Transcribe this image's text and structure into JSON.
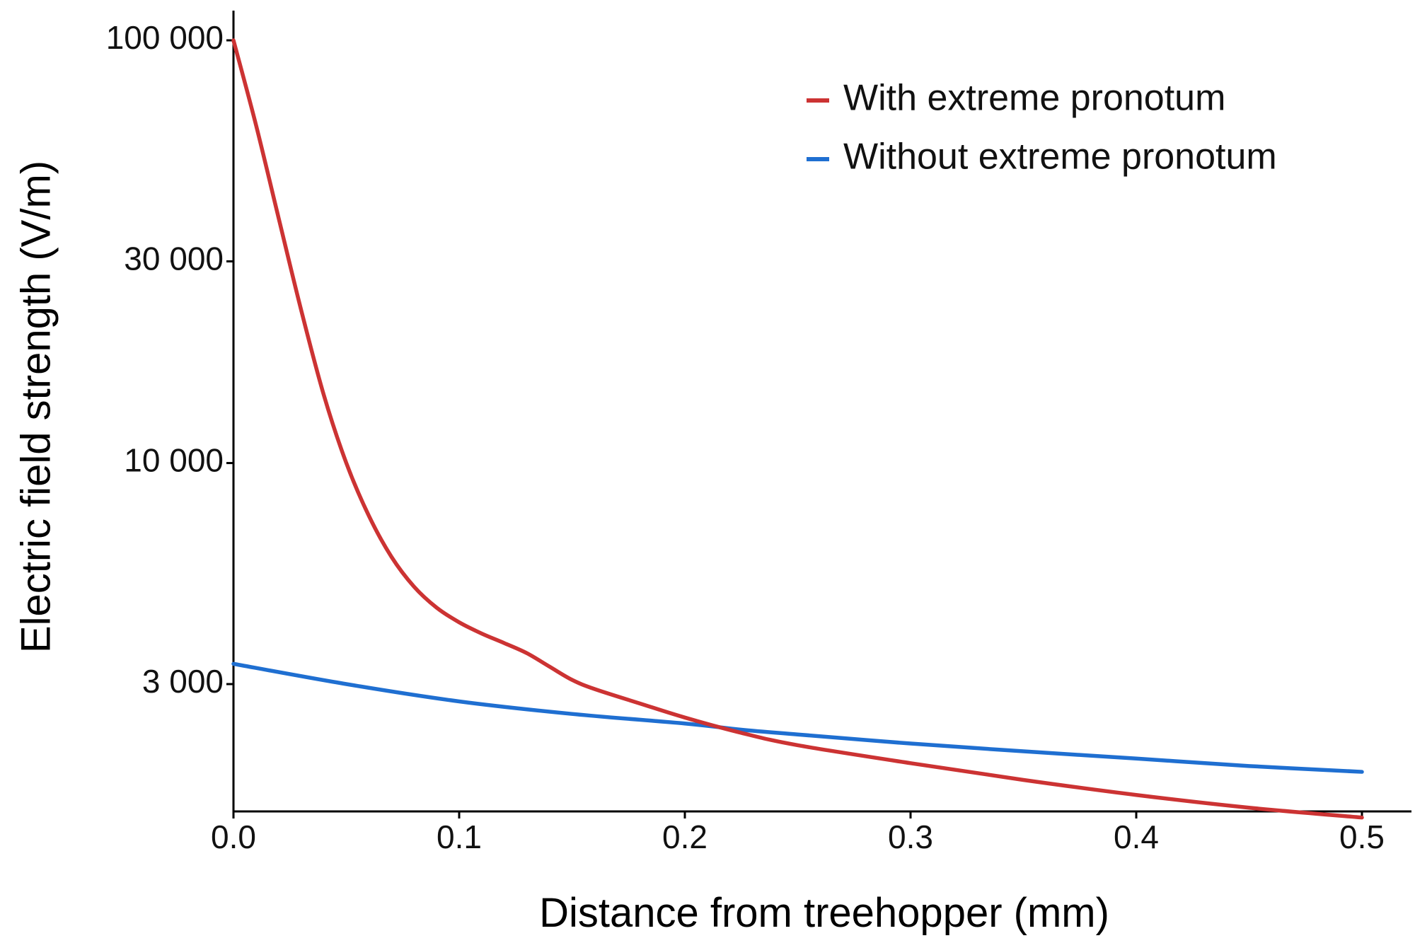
{
  "chart_data": {
    "type": "line",
    "title": "",
    "xlabel": "Distance from treehopper (mm)",
    "ylabel": "Electric field strength (V/m)",
    "y_scale": "log",
    "xlim": [
      0.0,
      0.52
    ],
    "ylim": [
      1450,
      120000
    ],
    "grid": false,
    "legend_position": "top-right",
    "x_ticks": [
      {
        "value": 0.0,
        "label": "0.0"
      },
      {
        "value": 0.1,
        "label": "0.1"
      },
      {
        "value": 0.2,
        "label": "0.2"
      },
      {
        "value": 0.3,
        "label": "0.3"
      },
      {
        "value": 0.4,
        "label": "0.4"
      },
      {
        "value": 0.5,
        "label": "0.5"
      }
    ],
    "y_ticks": [
      {
        "value": 3000,
        "label": "3 000"
      },
      {
        "value": 10000,
        "label": "10 000"
      },
      {
        "value": 30000,
        "label": "30 000"
      },
      {
        "value": 100000,
        "label": "100 000"
      }
    ],
    "series": [
      {
        "name": "With extreme pronotum",
        "color": "#cc3333",
        "x": [
          0.0,
          0.01,
          0.02,
          0.03,
          0.04,
          0.05,
          0.06,
          0.07,
          0.08,
          0.09,
          0.1,
          0.11,
          0.12,
          0.13,
          0.14,
          0.15,
          0.16,
          0.18,
          0.2,
          0.225,
          0.25,
          0.3,
          0.35,
          0.4,
          0.45,
          0.5
        ],
        "y": [
          100000,
          63000,
          38000,
          23000,
          14500,
          10000,
          7500,
          6000,
          5100,
          4550,
          4200,
          3950,
          3750,
          3550,
          3300,
          3070,
          2920,
          2700,
          2500,
          2300,
          2150,
          1950,
          1780,
          1640,
          1530,
          1450
        ]
      },
      {
        "name": "Without extreme pronotum",
        "color": "#1f6fd1",
        "x": [
          0.0,
          0.05,
          0.1,
          0.15,
          0.2,
          0.225,
          0.25,
          0.3,
          0.35,
          0.4,
          0.45,
          0.5
        ],
        "y": [
          3350,
          3000,
          2730,
          2550,
          2420,
          2340,
          2280,
          2170,
          2080,
          2000,
          1920,
          1860
        ]
      }
    ]
  }
}
